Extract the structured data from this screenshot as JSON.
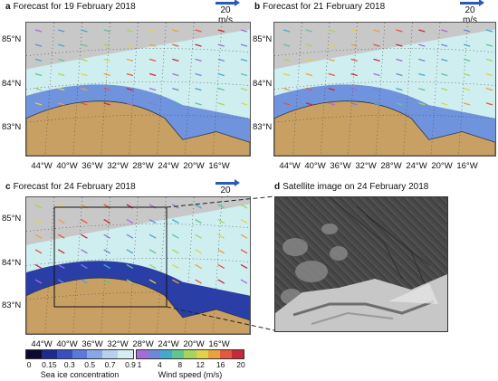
{
  "panels": [
    {
      "letter": "a",
      "title": "Forecast for 19 February 2018",
      "scale": "20 m/s",
      "lat_labels": [
        "85°N",
        "84°N",
        "83°N"
      ],
      "lon_labels": [
        "44°W",
        "40°W",
        "36°W",
        "32°W",
        "28°W",
        "24°W",
        "20°W",
        "16°W"
      ]
    },
    {
      "letter": "b",
      "title": "Forecast for 21 February 2018",
      "scale": "20 m/s",
      "lat_labels": [
        "85°N",
        "84°N",
        "83°N"
      ],
      "lon_labels": [
        "44°W",
        "40°W",
        "36°W",
        "32°W",
        "28°W",
        "24°W",
        "20°W",
        "16°W"
      ]
    },
    {
      "letter": "c",
      "title": "Forecast for 24 February 2018",
      "scale": "20 m/s",
      "lat_labels": [
        "85°N",
        "84°N",
        "83°N"
      ],
      "lon_labels": [
        "44°W",
        "40°W",
        "36°W",
        "32°W",
        "28°W",
        "24°W",
        "20°W",
        "16°W"
      ]
    }
  ],
  "satellite": {
    "letter": "d",
    "title": "Satellite image on 24 February 2018"
  },
  "ice_legend": {
    "title": "Sea ice concentration",
    "ticks": [
      "0",
      "0.15",
      "0.3",
      "0.5",
      "0.7",
      "0.9"
    ],
    "colors": [
      "#0b0b30",
      "#1f2a8c",
      "#3a4fbf",
      "#5b7ad8",
      "#88a7e6",
      "#b6d0ee",
      "#d6eef2"
    ]
  },
  "wind_legend": {
    "title": "Wind speed (m/s)",
    "ticks": [
      "1",
      "4",
      "8",
      "12",
      "16",
      "20"
    ],
    "colors": [
      "#a76bd6",
      "#6f87d8",
      "#43a9cf",
      "#5fc68f",
      "#a5d65a",
      "#e0d24a",
      "#eca13f",
      "#e3583e",
      "#c42a3a"
    ]
  },
  "colors": {
    "land": "#c9a063",
    "ice_light": "#cfeef0",
    "open": "#c8c8c8"
  }
}
